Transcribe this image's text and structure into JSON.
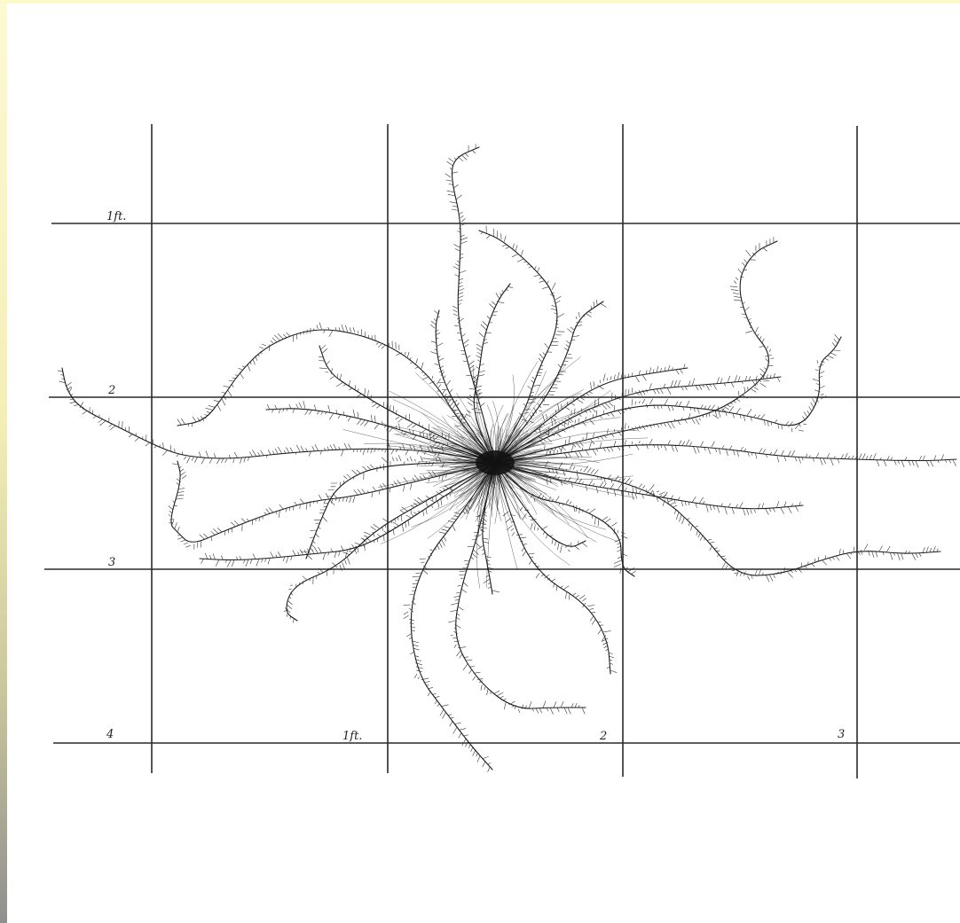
{
  "figure": {
    "row_labels": [
      "1ft.",
      "2",
      "3",
      "4"
    ],
    "column_labels": [
      "1ft.",
      "2",
      "3"
    ]
  }
}
